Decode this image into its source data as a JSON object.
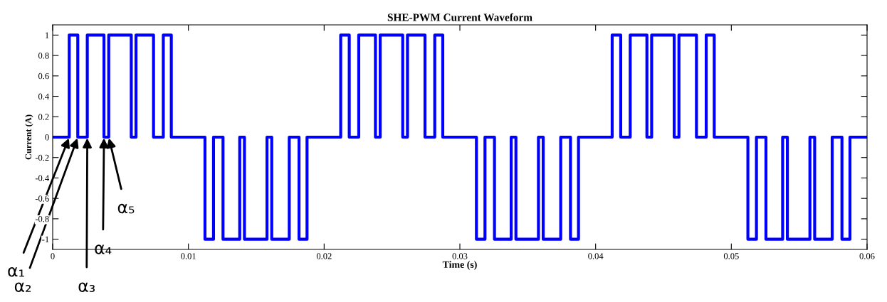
{
  "chart_data": {
    "type": "step",
    "title": "SHE-PWM Current Waveform",
    "xlabel": "Time (s)",
    "ylabel": "Current (A)",
    "xlim": [
      0,
      0.06
    ],
    "ylim": [
      -1.1,
      1.1
    ],
    "xticks": [
      0,
      0.01,
      0.02,
      0.03,
      0.04,
      0.05,
      0.06
    ],
    "yticks": [
      -1,
      -0.8,
      -0.6,
      -0.4,
      -0.2,
      0,
      0.2,
      0.4,
      0.6,
      0.8,
      1
    ],
    "series": [
      {
        "color": "#0000ff",
        "x": [
          0,
          0.00122,
          0.00185,
          0.00255,
          0.00378,
          0.00413,
          0.00579,
          0.00614,
          0.00743,
          0.00815,
          0.00874,
          0.01122,
          0.01185,
          0.01255,
          0.01378,
          0.01413,
          0.01579,
          0.01614,
          0.01743,
          0.01815,
          0.01874,
          0.02122,
          0.02185,
          0.02255,
          0.02378,
          0.02413,
          0.02579,
          0.02614,
          0.02743,
          0.02815,
          0.02874,
          0.03122,
          0.03185,
          0.03255,
          0.03378,
          0.03413,
          0.03579,
          0.03614,
          0.03743,
          0.03815,
          0.03874,
          0.04122,
          0.04185,
          0.04255,
          0.04378,
          0.04413,
          0.04579,
          0.04614,
          0.04743,
          0.04815,
          0.04874,
          0.05122,
          0.05185,
          0.05255,
          0.05378,
          0.05413,
          0.05579,
          0.05614,
          0.05743,
          0.05815,
          0.05874,
          0.06
        ],
        "values": [
          0,
          1,
          0,
          1,
          0,
          1,
          0,
          1,
          0,
          1,
          0,
          -1,
          0,
          -1,
          0,
          -1,
          0,
          -1,
          0,
          -1,
          0,
          1,
          0,
          1,
          0,
          1,
          0,
          1,
          0,
          1,
          0,
          -1,
          0,
          -1,
          0,
          -1,
          0,
          -1,
          0,
          -1,
          0,
          1,
          0,
          1,
          0,
          1,
          0,
          1,
          0,
          1,
          0,
          -1,
          0,
          -1,
          0,
          -1,
          0,
          -1,
          0,
          -1,
          0,
          0
        ]
      }
    ],
    "annotations": [
      {
        "text": "α₁",
        "x": 0.00122,
        "y": 0
      },
      {
        "text": "α₂",
        "x": 0.00185,
        "y": 0
      },
      {
        "text": "α₃",
        "x": 0.00255,
        "y": 0
      },
      {
        "text": "α₄",
        "x": 0.00378,
        "y": 0
      },
      {
        "text": "α₅",
        "x": 0.00413,
        "y": 0
      }
    ]
  }
}
